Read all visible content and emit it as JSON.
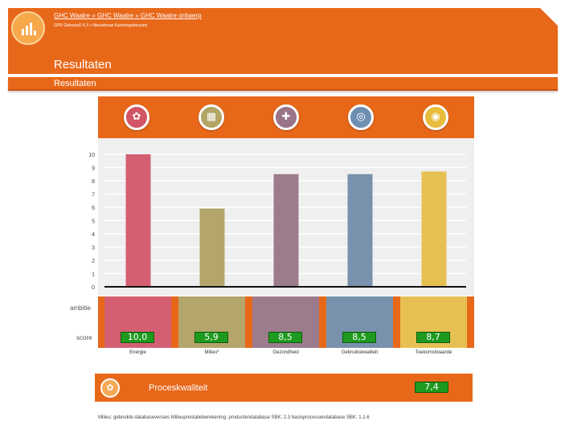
{
  "header": {
    "breadcrumb": "GHC Waalre » GHC Waalre » GHC Waalre ontwerp",
    "subcrumb": "GPR Gebouw© 4.3 » Nieuwbouw Kantoorgebouwen",
    "title": "Resultaten"
  },
  "section": {
    "title": "Resultaten"
  },
  "chart_data": {
    "type": "bar",
    "categories": [
      "Energie",
      "Milieu*",
      "Gezondheid",
      "Gebruikskwaliteit",
      "Toekomstwaarde"
    ],
    "values": [
      10.0,
      5.9,
      8.5,
      8.5,
      8.7
    ],
    "ylim": [
      0,
      10
    ],
    "yticks": [
      "0",
      "1",
      "2",
      "3",
      "4",
      "5",
      "6",
      "7",
      "8",
      "9",
      "10"
    ],
    "grid": true,
    "colors": [
      "#d45f72",
      "#b4a56a",
      "#9c7b8c",
      "#7892ad",
      "#e6c052"
    ],
    "score_labels": [
      "10,0",
      "5,9",
      "8,5",
      "8,5",
      "8,7"
    ]
  },
  "row_labels": {
    "ambitie": "ambitie",
    "score": "score"
  },
  "icons": [
    "energy-icon",
    "material-icon",
    "health-icon",
    "usability-icon",
    "future-icon"
  ],
  "proces": {
    "label": "Proceskwaliteit",
    "score": "7,4"
  },
  "footnote": "Milieu: gebruikte databaseversies Milieuprestatieberekening: productendatabase SBK: 2.3 basisprocessendatabase SBK: 1.1.6"
}
